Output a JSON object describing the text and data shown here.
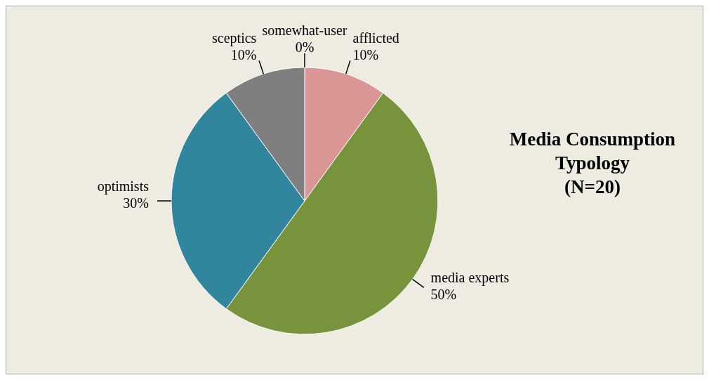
{
  "chart_data": {
    "type": "pie",
    "title": "Media Consumption Typology",
    "subtitle": "(N=20)",
    "categories": [
      "afflicted",
      "media experts",
      "optimists",
      "sceptics",
      "somewhat-user"
    ],
    "values": [
      10,
      50,
      30,
      10,
      0
    ],
    "colors": [
      "#d99694",
      "#77933c",
      "#31859c",
      "#7f7f7f",
      "#8064a2"
    ],
    "value_labels": [
      "10%",
      "50%",
      "30%",
      "10%",
      "0%"
    ],
    "legend": false
  }
}
